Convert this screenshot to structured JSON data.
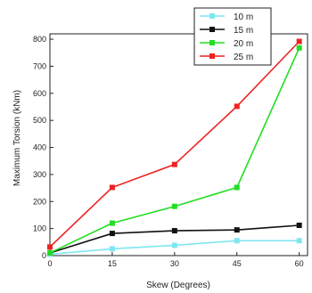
{
  "chart_data": {
    "type": "line",
    "title": "",
    "xlabel": "Skew (Degrees)",
    "ylabel": "Maximum Torsion (kNm)",
    "x": [
      0,
      15,
      30,
      45,
      60
    ],
    "xticks": [
      0,
      15,
      30,
      45,
      60
    ],
    "yticks": [
      0,
      100,
      200,
      300,
      400,
      500,
      600,
      700,
      800
    ],
    "xlim": [
      0,
      62
    ],
    "ylim": [
      0,
      820
    ],
    "grid": false,
    "legend_position": "top-right",
    "series": [
      {
        "name": "10 m",
        "color": "#7fe6f0",
        "values": [
          5,
          25,
          38,
          55,
          55
        ]
      },
      {
        "name": "15 m",
        "color": "#111111",
        "values": [
          10,
          82,
          92,
          95,
          112
        ]
      },
      {
        "name": "20 m",
        "color": "#22dd22",
        "values": [
          10,
          120,
          182,
          252,
          768
        ]
      },
      {
        "name": "25 m",
        "color": "#ee2222",
        "values": [
          32,
          252,
          337,
          552,
          792
        ]
      }
    ]
  }
}
